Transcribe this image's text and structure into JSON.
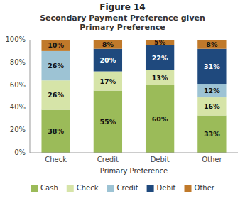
{
  "chart_data": {
    "type": "bar",
    "stacked": true,
    "title": "Figure 14",
    "subtitle": "Secondary Payment Preference given\nPrimary Preference",
    "x_label": "Primary Preference",
    "categories": [
      "Check",
      "Credit",
      "Debit",
      "Other"
    ],
    "series": [
      {
        "name": "Cash",
        "color": "#9BBB59",
        "values": [
          38,
          55,
          60,
          33
        ],
        "value_labels": [
          "38%",
          "55%",
          "60%",
          "33%"
        ]
      },
      {
        "name": "Check",
        "color": "#D6E4A8",
        "values": [
          26,
          17,
          13,
          16
        ],
        "value_labels": [
          "26%",
          "17%",
          "13%",
          "16%"
        ]
      },
      {
        "name": "Credit",
        "color": "#9DC3D4",
        "values": [
          26,
          0,
          0,
          12
        ],
        "value_labels": [
          "26%",
          null,
          null,
          "12%"
        ]
      },
      {
        "name": "Debit",
        "color": "#1F497D",
        "values": [
          0,
          20,
          22,
          31
        ],
        "value_labels": [
          null,
          "20%",
          "22%",
          "31%"
        ]
      },
      {
        "name": "Other",
        "color": "#C0792A",
        "values": [
          10,
          8,
          5,
          8
        ],
        "value_labels": [
          "10%",
          "8%",
          "5%",
          "8%"
        ]
      }
    ],
    "ylim": [
      0,
      100
    ],
    "yticks": [
      {
        "value": 0,
        "label": "0%"
      },
      {
        "value": 20,
        "label": "20%"
      },
      {
        "value": 40,
        "label": "40%"
      },
      {
        "value": 60,
        "label": "60%"
      },
      {
        "value": 80,
        "label": "80%"
      },
      {
        "value": 100,
        "label": "100%"
      }
    ],
    "grid": false,
    "legend": "bottom",
    "data_labels": true,
    "tick_labels": true
  }
}
